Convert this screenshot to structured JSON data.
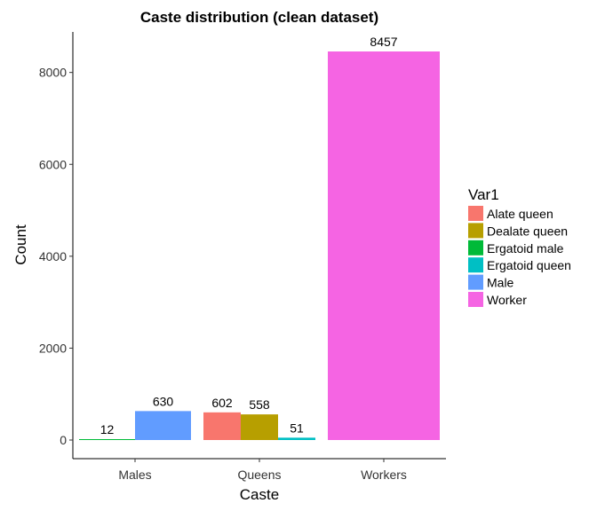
{
  "chart_data": {
    "type": "bar",
    "title": "Caste distribution (clean dataset)",
    "xlabel": "Caste",
    "ylabel": "Count",
    "ylim": [
      0,
      8850
    ],
    "yticks": [
      0,
      2000,
      4000,
      6000,
      8000
    ],
    "categories": [
      "Males",
      "Queens",
      "Workers"
    ],
    "grid": false,
    "legend": {
      "title": "Var1",
      "placement": "right"
    },
    "series": [
      {
        "name": "Alate queen",
        "color": "#F8766D",
        "values": [
          null,
          602,
          null
        ]
      },
      {
        "name": "Dealate queen",
        "color": "#B79F00",
        "values": [
          null,
          558,
          null
        ]
      },
      {
        "name": "Ergatoid male",
        "color": "#00BA38",
        "values": [
          12,
          null,
          null
        ]
      },
      {
        "name": "Ergatoid queen",
        "color": "#00BFC4",
        "values": [
          null,
          51,
          null
        ]
      },
      {
        "name": "Male",
        "color": "#619CFF",
        "values": [
          630,
          null,
          null
        ]
      },
      {
        "name": "Worker",
        "color": "#F564E3",
        "values": [
          null,
          null,
          8457
        ]
      }
    ]
  }
}
